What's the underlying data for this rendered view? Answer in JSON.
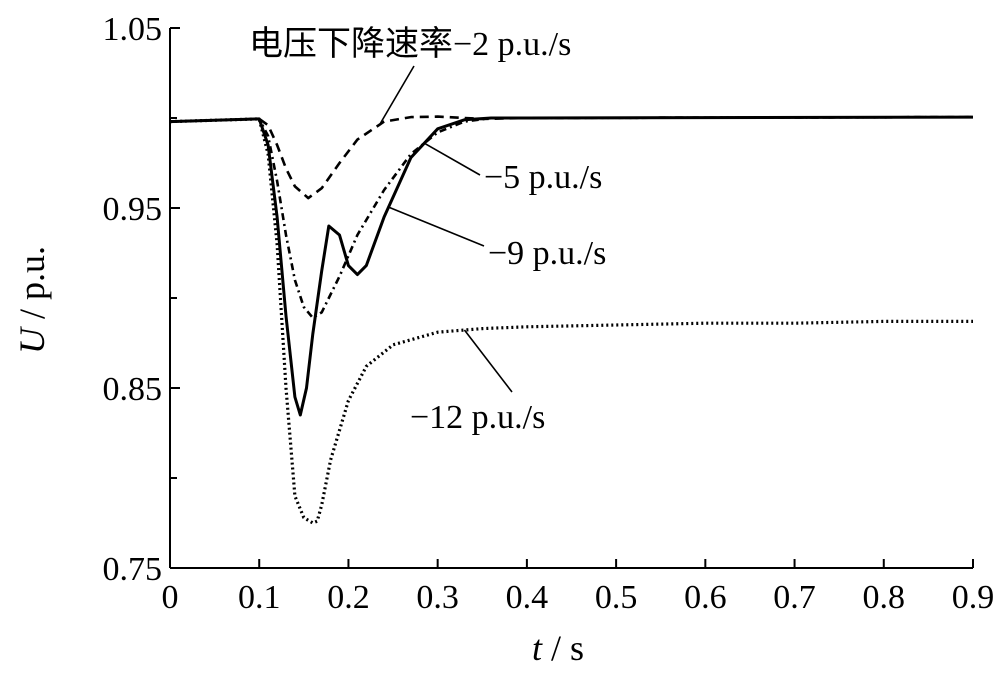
{
  "chart_data": {
    "type": "line",
    "title": "",
    "xlabel_var": "t",
    "xlabel_unit": " / s",
    "ylabel_var": "U",
    "ylabel_unit": " / p.u.",
    "xlim": [
      0,
      0.9
    ],
    "ylim": [
      0.75,
      1.05
    ],
    "xticks": [
      "0",
      "0.1",
      "0.2",
      "0.3",
      "0.4",
      "0.5",
      "0.6",
      "0.7",
      "0.8",
      "0.9"
    ],
    "yticks": [
      "0.75",
      "0.85",
      "0.95",
      "1.05"
    ],
    "grid": false,
    "series": [
      {
        "name": "电压下降速率−2 p.u./s",
        "style": "dashed",
        "x": [
          0,
          0.1,
          0.11,
          0.12,
          0.13,
          0.14,
          0.155,
          0.17,
          0.19,
          0.21,
          0.24,
          0.27,
          0.3,
          0.35,
          0.4,
          0.9
        ],
        "y": [
          0.998,
          0.9995,
          0.996,
          0.985,
          0.972,
          0.962,
          0.9555,
          0.961,
          0.975,
          0.988,
          0.998,
          1.0005,
          1.0008,
          0.9995,
          1.0,
          1.0005
        ]
      },
      {
        "name": "−5 p.u./s",
        "style": "dashdot",
        "x": [
          0,
          0.1,
          0.11,
          0.12,
          0.13,
          0.14,
          0.15,
          0.16,
          0.17,
          0.19,
          0.21,
          0.24,
          0.27,
          0.3,
          0.33,
          0.36,
          0.4,
          0.9
        ],
        "y": [
          0.998,
          0.9995,
          0.99,
          0.965,
          0.935,
          0.91,
          0.895,
          0.889,
          0.892,
          0.912,
          0.935,
          0.96,
          0.98,
          0.992,
          0.998,
          1.0,
          1.0,
          1.0005
        ]
      },
      {
        "name": "−9 p.u./s",
        "style": "solid",
        "x": [
          0,
          0.1,
          0.11,
          0.12,
          0.13,
          0.14,
          0.146,
          0.153,
          0.16,
          0.17,
          0.178,
          0.19,
          0.2,
          0.21,
          0.22,
          0.24,
          0.27,
          0.3,
          0.33,
          0.36,
          0.4,
          0.9
        ],
        "y": [
          0.998,
          0.9995,
          0.985,
          0.945,
          0.89,
          0.845,
          0.835,
          0.85,
          0.88,
          0.915,
          0.94,
          0.935,
          0.918,
          0.913,
          0.918,
          0.945,
          0.978,
          0.994,
          0.999,
          1.0,
          1.0,
          1.0005
        ]
      },
      {
        "name": "−12 p.u./s",
        "style": "dotted",
        "x": [
          0,
          0.1,
          0.11,
          0.12,
          0.13,
          0.14,
          0.15,
          0.16,
          0.165,
          0.17,
          0.18,
          0.2,
          0.22,
          0.25,
          0.3,
          0.35,
          0.4,
          0.5,
          0.6,
          0.7,
          0.8,
          0.9
        ],
        "y": [
          0.998,
          0.9995,
          0.98,
          0.93,
          0.85,
          0.79,
          0.778,
          0.775,
          0.776,
          0.785,
          0.81,
          0.843,
          0.862,
          0.874,
          0.881,
          0.883,
          0.884,
          0.885,
          0.886,
          0.886,
          0.887,
          0.887
        ]
      }
    ],
    "annotations": [
      {
        "text": "电压下降速率−2 p.u./s",
        "series": 0,
        "at_x": 0.235
      },
      {
        "text": "−5 p.u./s",
        "series": 1,
        "at_x": 0.285
      },
      {
        "text": "−9 p.u./s",
        "series": 2,
        "at_x": 0.245
      },
      {
        "text": "−12 p.u./s",
        "series": 3,
        "at_x": 0.33
      }
    ]
  }
}
